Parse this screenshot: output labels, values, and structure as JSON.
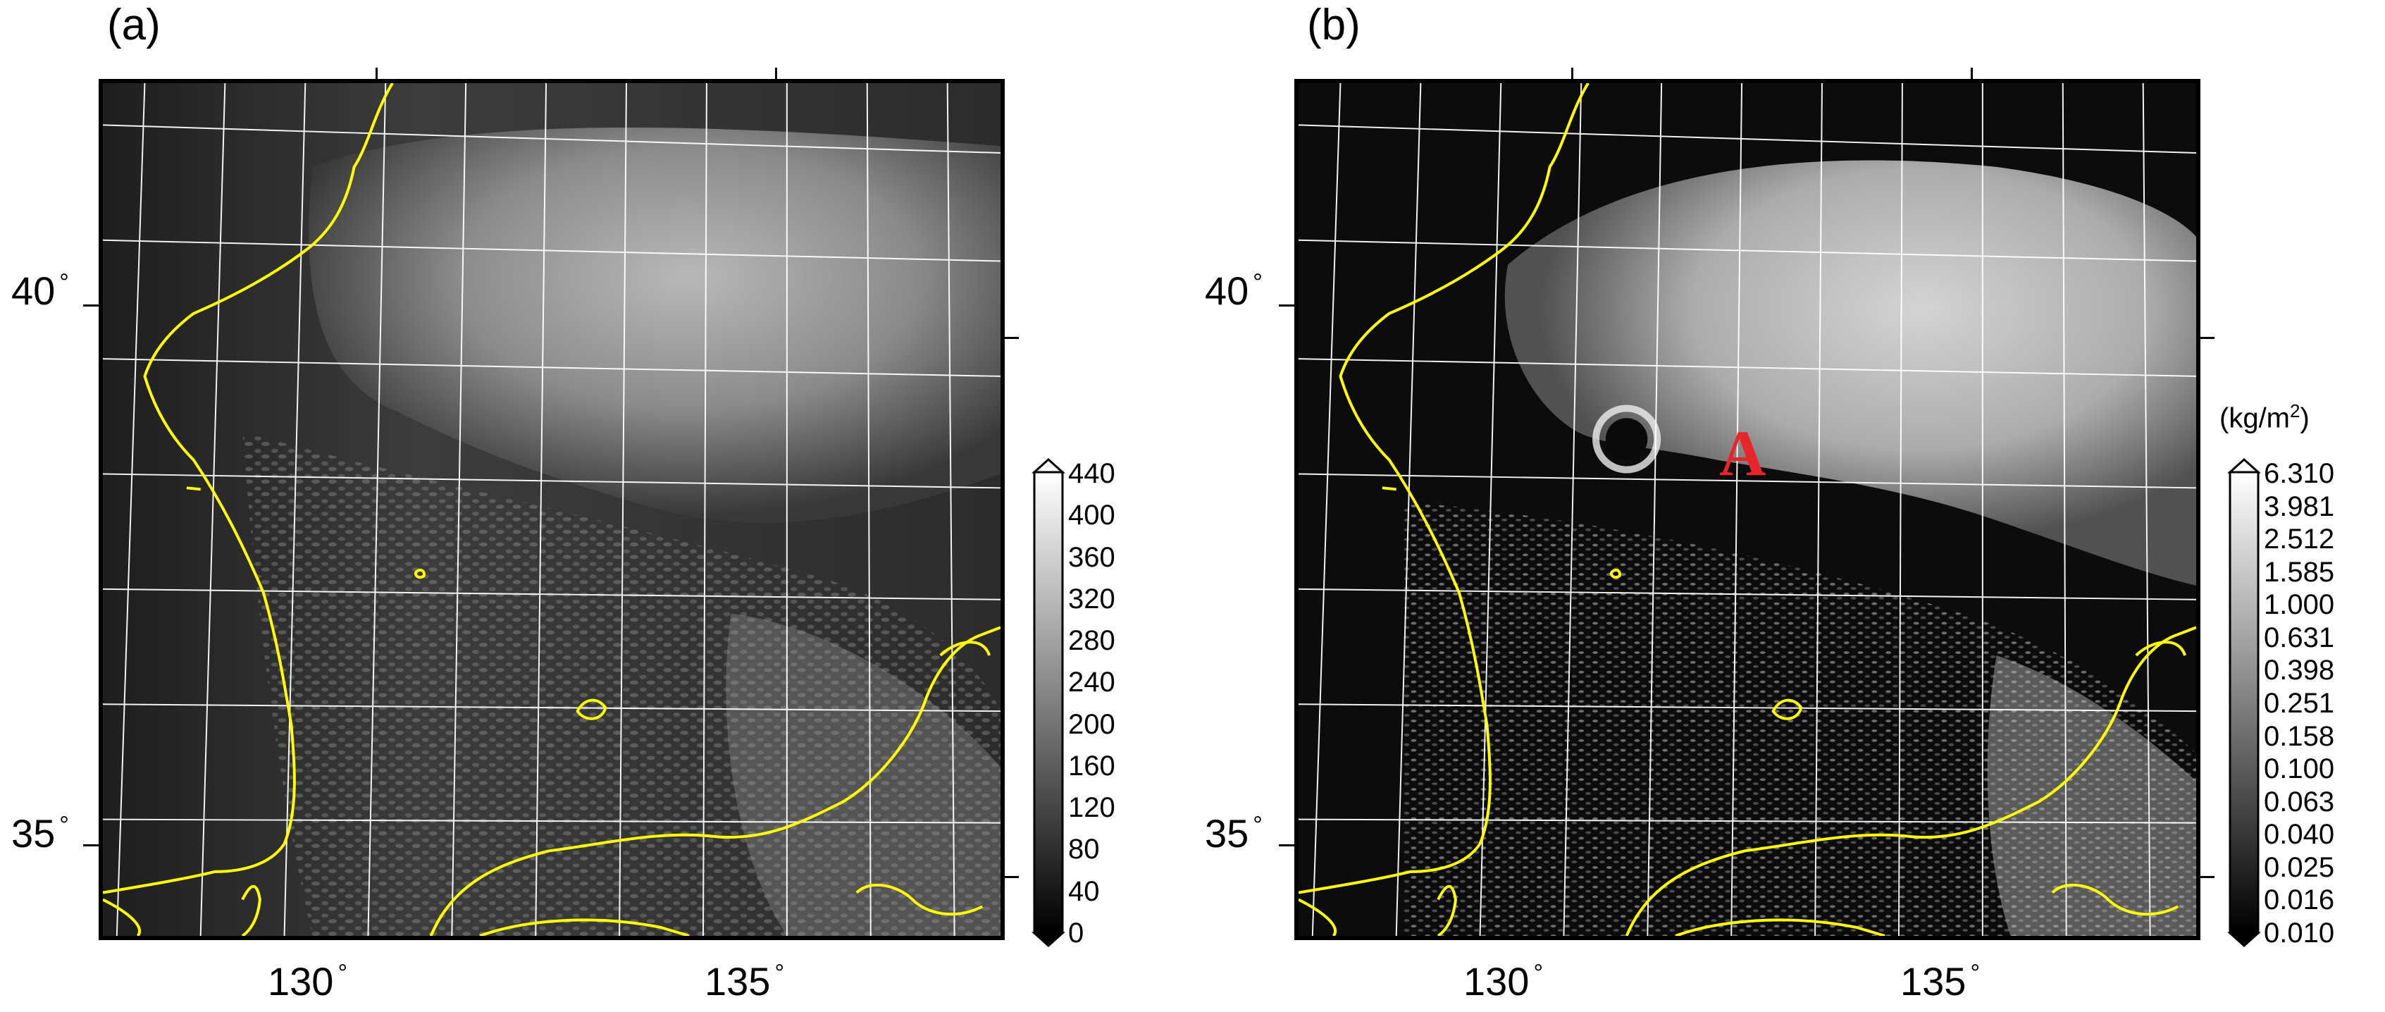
{
  "panels": [
    {
      "label": "(a)",
      "colorbar": {
        "unit": "",
        "labels": [
          "440",
          "400",
          "360",
          "320",
          "280",
          "240",
          "200",
          "160",
          "120",
          "80",
          "40",
          "0"
        ]
      }
    },
    {
      "label": "(b)",
      "annotation": "A",
      "colorbar": {
        "unit_base": "(kg/m",
        "unit_exp": "2",
        "unit_close": ")",
        "labels": [
          "6.310",
          "3.981",
          "2.512",
          "1.585",
          "1.000",
          "0.631",
          "0.398",
          "0.251",
          "0.158",
          "0.100",
          "0.063",
          "0.040",
          "0.025",
          "0.016",
          "0.010"
        ]
      }
    }
  ],
  "axes": {
    "lat_labels": [
      "40",
      "35"
    ],
    "lon_labels": [
      "130",
      "135"
    ],
    "degree_symbol": "°"
  },
  "colors": {
    "coastline": "#ffff00",
    "grid": "#ffffff",
    "annotation": "#e8252b"
  }
}
